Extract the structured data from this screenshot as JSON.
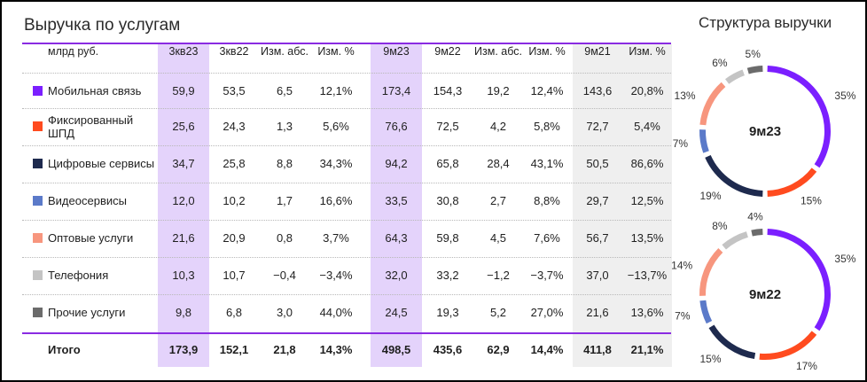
{
  "title": "Выручка по услугам",
  "ring_title": "Структура выручки",
  "headers": [
    "млрд руб.",
    "3кв23",
    "3кв22",
    "Изм. абс.",
    "Изм. %",
    "9м23",
    "9м22",
    "Изм. абс.",
    "Изм. %",
    "9м21",
    "Изм. %"
  ],
  "rows": [
    {
      "label": "Мобильная связь",
      "color": "#7b1fff",
      "values": [
        "59,9",
        "53,5",
        "6,5",
        "12,1%",
        "173,4",
        "154,3",
        "19,2",
        "12,4%",
        "143,6",
        "20,8%"
      ]
    },
    {
      "label": "Фиксированный ШПД",
      "color": "#ff4b1f",
      "values": [
        "25,6",
        "24,3",
        "1,3",
        "5,6%",
        "76,6",
        "72,5",
        "4,2",
        "5,8%",
        "72,7",
        "5,4%"
      ]
    },
    {
      "label": "Цифровые сервисы",
      "color": "#1e2a4e",
      "values": [
        "34,7",
        "25,8",
        "8,8",
        "34,3%",
        "94,2",
        "65,8",
        "28,4",
        "43,1%",
        "50,5",
        "86,6%"
      ]
    },
    {
      "label": "Видеосервисы",
      "color": "#5b7ac9",
      "values": [
        "12,0",
        "10,2",
        "1,7",
        "16,6%",
        "33,5",
        "30,8",
        "2,7",
        "8,8%",
        "29,7",
        "12,5%"
      ]
    },
    {
      "label": "Оптовые услуги",
      "color": "#f7967e",
      "values": [
        "21,6",
        "20,9",
        "0,8",
        "3,7%",
        "64,3",
        "59,8",
        "4,5",
        "7,6%",
        "56,7",
        "13,5%"
      ]
    },
    {
      "label": "Телефония",
      "color": "#c4c4c4",
      "values": [
        "10,3",
        "10,7",
        "−0,4",
        "−3,4%",
        "32,0",
        "33,2",
        "−1,2",
        "−3,7%",
        "37,0",
        "−13,7%"
      ]
    },
    {
      "label": "Прочие услуги",
      "color": "#6b6b6b",
      "values": [
        "9,8",
        "6,8",
        "3,0",
        "44,0%",
        "24,5",
        "19,3",
        "5,2",
        "27,0%",
        "21,6",
        "13,6%"
      ]
    }
  ],
  "total": {
    "label": "Итого",
    "values": [
      "173,9",
      "152,1",
      "21,8",
      "14,3%",
      "498,5",
      "435,6",
      "62,9",
      "14,4%",
      "411,8",
      "21,1%"
    ]
  },
  "chart_data": [
    {
      "type": "pie",
      "title": "9м23",
      "labels": [
        "Мобильная связь",
        "Фиксированный ШПД",
        "Цифровые сервисы",
        "Видеосервисы",
        "Оптовые услуги",
        "Телефония",
        "Прочие услуги"
      ],
      "values": [
        35,
        15,
        19,
        7,
        13,
        6,
        5
      ],
      "value_labels": [
        "35%",
        "15%",
        "19%",
        "7%",
        "13%",
        "6%",
        "5%"
      ],
      "colors": [
        "#7b1fff",
        "#ff4b1f",
        "#1e2a4e",
        "#5b7ac9",
        "#f7967e",
        "#c4c4c4",
        "#6b6b6b"
      ]
    },
    {
      "type": "pie",
      "title": "9м22",
      "labels": [
        "Мобильная связь",
        "Фиксированный ШПД",
        "Цифровые сервисы",
        "Видеосервисы",
        "Оптовые услуги",
        "Телефония",
        "Прочие услуги"
      ],
      "values": [
        35,
        17,
        15,
        7,
        14,
        8,
        4
      ],
      "value_labels": [
        "35%",
        "17%",
        "15%",
        "7%",
        "14%",
        "8%",
        "4%"
      ],
      "colors": [
        "#7b1fff",
        "#ff4b1f",
        "#1e2a4e",
        "#5b7ac9",
        "#f7967e",
        "#c4c4c4",
        "#6b6b6b"
      ]
    }
  ]
}
